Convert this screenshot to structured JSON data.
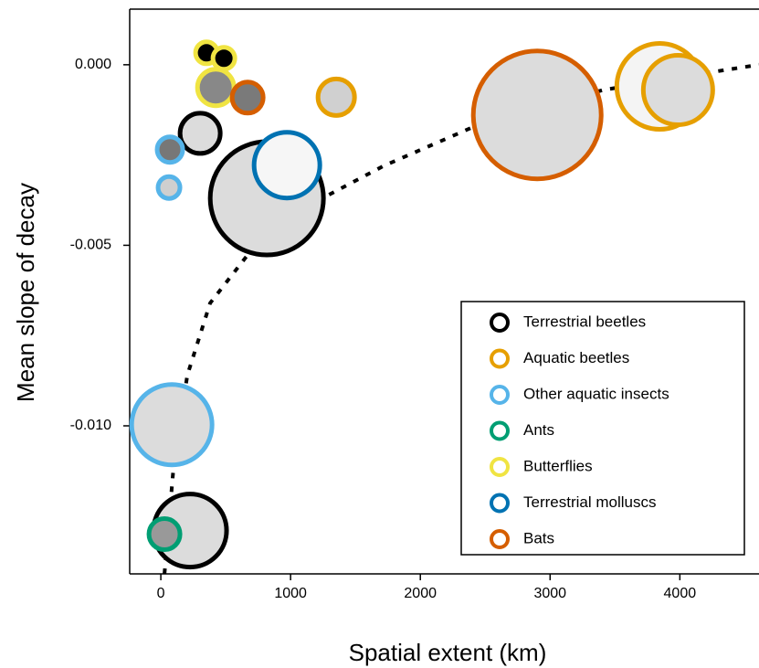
{
  "chart_data": {
    "type": "bubble",
    "x_label": "Spatial extent (km)",
    "y_label": "Mean slope of decay",
    "xlim": [
      -240,
      4610
    ],
    "ylim": [
      -0.0141,
      0.00154
    ],
    "xticks": [
      0,
      1000,
      2000,
      3000,
      4000
    ],
    "yticks": [
      {
        "value": -0.01,
        "label": "-0.010"
      },
      {
        "value": -0.005,
        "label": "-0.005"
      },
      {
        "value": 0,
        "label": "0.000"
      }
    ],
    "legend": "bottom-right",
    "series": [
      {
        "name": "Terrestrial beetles",
        "color": "#000000",
        "x": [
          817,
          225,
          303
        ],
        "values": [
          -0.0037,
          -0.0129,
          -0.0019
        ],
        "sizes": [
          62,
          40,
          22
        ],
        "fills": [
          "#dcdcdc",
          "#dcdcdc",
          "#dcdcdc"
        ]
      },
      {
        "name": "Aquatic beetles",
        "color": "#e69f00",
        "x": [
          1352,
          3845,
          3986
        ],
        "values": [
          -0.0009,
          -0.0006,
          -0.0007
        ],
        "sizes": [
          20,
          47,
          38
        ],
        "fills": [
          "#d0d0d0",
          "#f4f4f4",
          "#dcdcdc"
        ]
      },
      {
        "name": "Other aquatic insects",
        "color": "#56b4e9",
        "x": [
          85,
          70,
          63
        ],
        "values": [
          -0.00997,
          -0.00235,
          -0.0034
        ],
        "sizes": [
          44,
          14,
          12
        ],
        "fills": [
          "#dcdcdc",
          "#777777",
          "#cfcfcf"
        ]
      },
      {
        "name": "Ants",
        "color": "#009e73",
        "x": [
          28
        ],
        "values": [
          -0.013
        ],
        "sizes": [
          17
        ],
        "fills": [
          "#999999"
        ]
      },
      {
        "name": "Butterflies",
        "color": "#f0e442",
        "x": [
          352,
          486,
          423
        ],
        "values": [
          0.00033,
          0.00018,
          -0.00063
        ],
        "sizes": [
          12,
          12,
          20
        ],
        "fills": [
          "#000000",
          "#000000",
          "#888888"
        ]
      },
      {
        "name": "Terrestrial molluscs",
        "color": "#0072b2",
        "x": [
          972
        ],
        "values": [
          -0.00278
        ],
        "sizes": [
          36
        ],
        "fills": [
          "#f6f6f6"
        ]
      },
      {
        "name": "Bats",
        "color": "#d55e00",
        "x": [
          2901,
          669
        ],
        "values": [
          -0.00139,
          -0.00091
        ],
        "sizes": [
          70,
          17
        ],
        "fills": [
          "#dcdcdc",
          "#7a7a7a"
        ]
      }
    ],
    "fit": {
      "x": [
        28,
        99,
        204,
        380,
        662,
        1085,
        1718,
        2423,
        3408,
        4254,
        4610
      ],
      "values": [
        -0.0141,
        -0.0111,
        -0.0086,
        -0.0066,
        -0.0053,
        -0.004,
        -0.0028,
        -0.0017,
        -0.0007,
        -0.0002,
        0
      ]
    }
  }
}
